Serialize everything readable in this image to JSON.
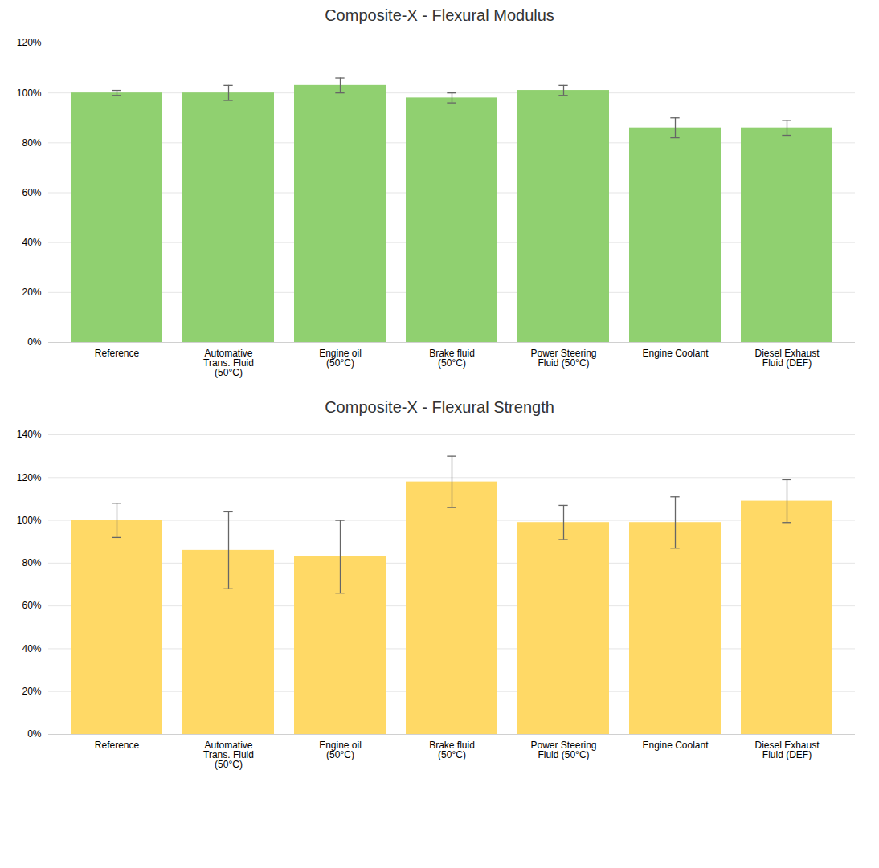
{
  "chart_data": [
    {
      "type": "bar",
      "title": "Composite-X - Flexural Modulus",
      "categories": [
        "Reference",
        "Automative\nTrans. Fluid\n(50°C)",
        "Engine oil\n(50°C)",
        "Brake fluid\n(50°C)",
        "Power Steering\nFluid (50°C)",
        "Engine Coolant",
        "Diesel Exhaust\nFluid (DEF)"
      ],
      "values": [
        100,
        100,
        103,
        98,
        101,
        86,
        86
      ],
      "errors": [
        1,
        3,
        3,
        2,
        2,
        4,
        3
      ],
      "color": "#90D070",
      "ylim": [
        0,
        120
      ],
      "yticks": [
        {
          "value": 0,
          "label": "0%"
        },
        {
          "value": 20,
          "label": "20%"
        },
        {
          "value": 40,
          "label": "40%"
        },
        {
          "value": 60,
          "label": "60%"
        },
        {
          "value": 80,
          "label": "80%"
        },
        {
          "value": 100,
          "label": "100%"
        },
        {
          "value": 120,
          "label": "120%"
        }
      ],
      "grid": true
    },
    {
      "type": "bar",
      "title": "Composite-X - Flexural Strength",
      "categories": [
        "Reference",
        "Automative\nTrans. Fluid\n(50°C)",
        "Engine oil\n(50°C)",
        "Brake fluid\n(50°C)",
        "Power Steering\nFluid (50°C)",
        "Engine Coolant",
        "Diesel Exhaust\nFluid (DEF)"
      ],
      "values": [
        100,
        86,
        83,
        118,
        99,
        99,
        109
      ],
      "errors": [
        8,
        18,
        17,
        12,
        8,
        12,
        10
      ],
      "color": "#FFD966",
      "ylim": [
        0,
        140
      ],
      "yticks": [
        {
          "value": 0,
          "label": "0%"
        },
        {
          "value": 20,
          "label": "20%"
        },
        {
          "value": 40,
          "label": "40%"
        },
        {
          "value": 60,
          "label": "60%"
        },
        {
          "value": 80,
          "label": "80%"
        },
        {
          "value": 100,
          "label": "100%"
        },
        {
          "value": 120,
          "label": "120%"
        },
        {
          "value": 140,
          "label": "140%"
        }
      ],
      "grid": true
    }
  ]
}
